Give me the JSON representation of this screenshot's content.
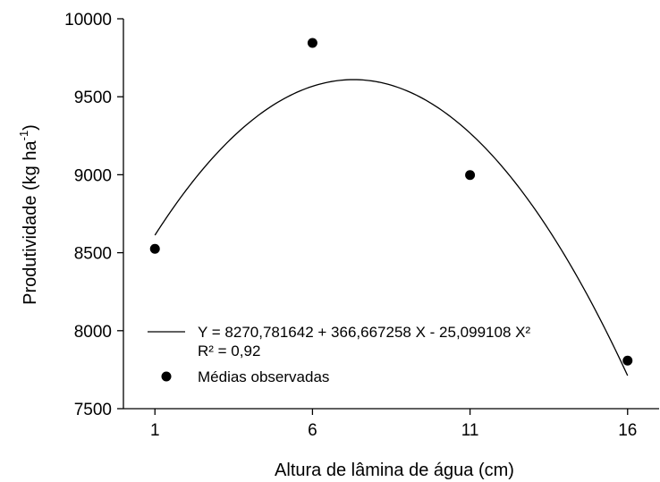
{
  "chart_data": {
    "type": "scatter",
    "title": "",
    "xlabel": "Altura de lâmina de água (cm)",
    "ylabel_main": "Produtividade (kg ha",
    "ylabel_sup": "-1",
    "ylabel_close": ")",
    "xlim": [
      0,
      17
    ],
    "ylim": [
      7500,
      10000
    ],
    "x_ticks": [
      1,
      6,
      11,
      16
    ],
    "y_ticks": [
      7500,
      8000,
      8500,
      9000,
      9500,
      10000
    ],
    "grid": false,
    "legend_position": "bottom-left",
    "series": [
      {
        "type": "line",
        "equation": "Y = 8270,781642 + 366,667258 X - 25,099108 X²",
        "r2": "R² = 0,92",
        "coefficients": [
          8270.781642,
          366.667258,
          -25.099108
        ],
        "x_range": [
          1,
          16
        ]
      },
      {
        "type": "scatter",
        "name": "Médias observadas",
        "x": [
          1,
          6,
          11,
          16
        ],
        "y": [
          8525,
          9845,
          8998,
          7808
        ]
      }
    ]
  }
}
